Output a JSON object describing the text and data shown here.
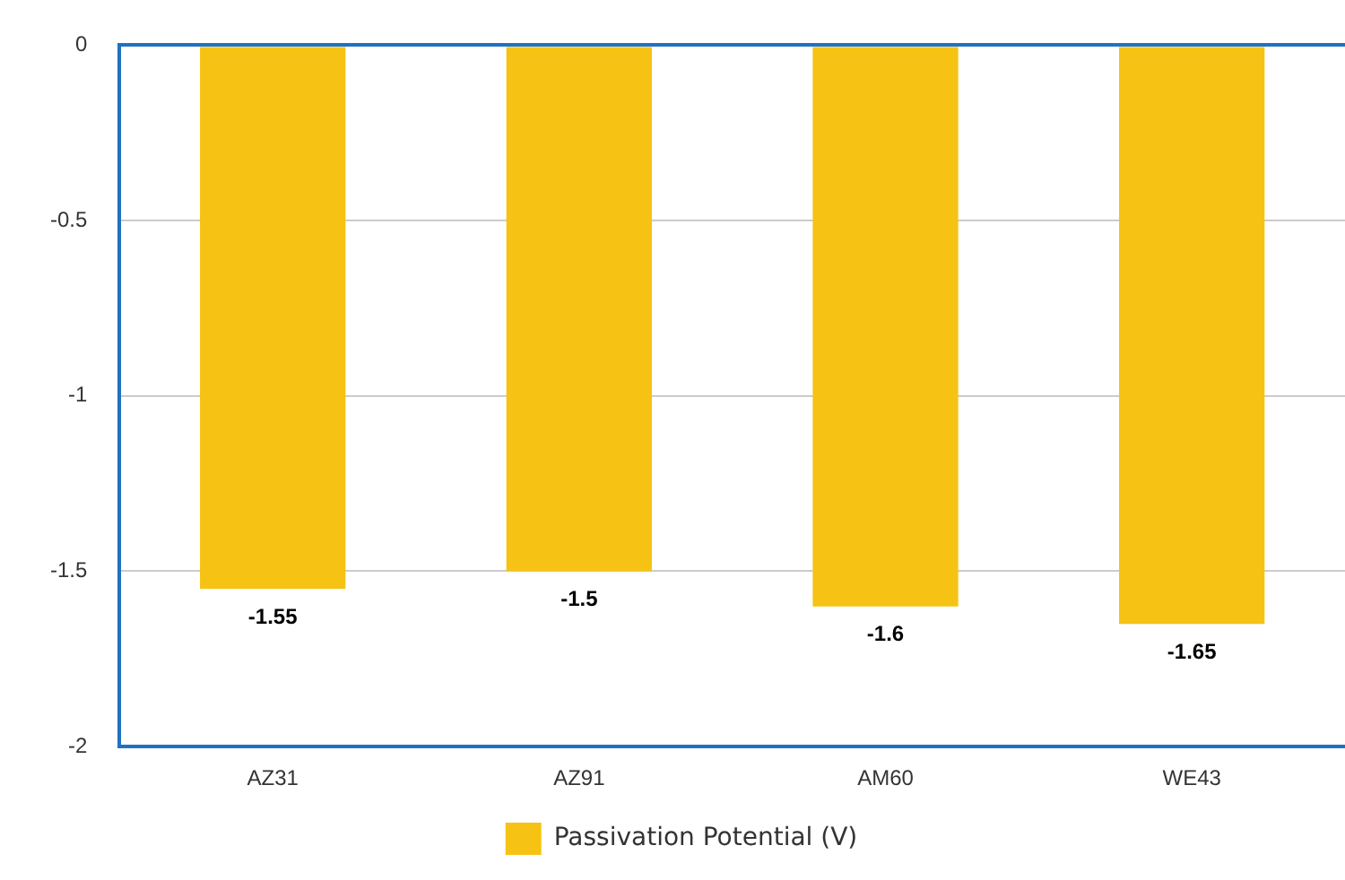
{
  "chart_data": {
    "type": "bar",
    "categories": [
      "AZ31",
      "AZ91",
      "AM60",
      "WE43"
    ],
    "series": [
      {
        "name": "Passivation Potential (V)",
        "color": "#f6c314",
        "values": [
          -1.55,
          -1.5,
          -1.6,
          -1.65
        ]
      }
    ],
    "ylim": [
      -2,
      0
    ],
    "yticks": [
      0,
      -0.5,
      -1,
      -1.5,
      -2
    ],
    "grid": "y",
    "legend": "bottom",
    "data_labels": true
  }
}
